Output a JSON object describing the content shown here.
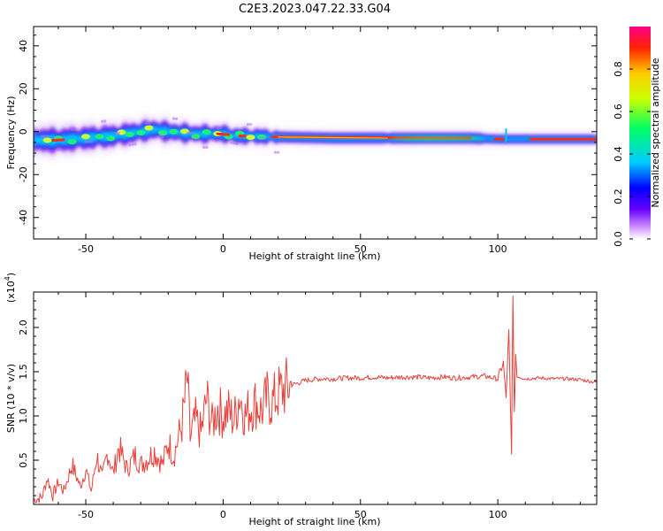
{
  "title": "C2E3.2023.047.22.33.G04",
  "chart_data": [
    {
      "type": "heatmap",
      "title": "C2E3.2023.047.22.33.G04",
      "xlabel": "Height of straight line (km)",
      "ylabel": "Frequency (Hz)",
      "xlim": [
        -69,
        136
      ],
      "ylim": [
        -50,
        49
      ],
      "xticks": [
        -50,
        0,
        50,
        100
      ],
      "xtick_labels": [
        "-50",
        "0",
        "50",
        "100"
      ],
      "yticks": [
        -40,
        -20,
        0,
        20,
        40
      ],
      "ytick_labels": [
        "-40",
        "-20",
        "0",
        "20",
        "40"
      ],
      "grid": false,
      "colorbar": {
        "label": "Normalized spectral amplitude",
        "range": [
          0,
          1
        ],
        "ticks": [
          0.0,
          0.2,
          0.4,
          0.6,
          0.8
        ],
        "tick_labels": [
          "0.0",
          "0.2",
          "0.4",
          "0.6",
          "0.8"
        ],
        "colors": [
          "#ffffff",
          "#cc88ff",
          "#6600ff",
          "#0000ff",
          "#00ccff",
          "#00ff66",
          "#ccff00",
          "#ffcc00",
          "#ff2200",
          "#ff0088"
        ]
      },
      "band": {
        "x": [
          -69,
          -60,
          -50,
          -40,
          -30,
          -25,
          -20,
          -10,
          0,
          5,
          10,
          20,
          40,
          60,
          80,
          90,
          100,
          105,
          110,
          120,
          136
        ],
        "center_freq": [
          -4,
          -4,
          -3,
          -2,
          0,
          1,
          0,
          -1,
          -1,
          -2,
          -2,
          -2.5,
          -3,
          -3,
          -3,
          -3,
          -3.5,
          -3.5,
          -3.5,
          -3.5,
          -3.5
        ]
      }
    },
    {
      "type": "line",
      "title": "",
      "xlabel": "Height of straight line (km)",
      "ylabel": "SNR (10 * v/v)",
      "scale_note": "(x10",
      "scale_exp": "4",
      "xlim": [
        -69,
        136
      ],
      "ylim": [
        0,
        2.4
      ],
      "xticks": [
        -50,
        0,
        50,
        100
      ],
      "xtick_labels": [
        "-50",
        "0",
        "50",
        "100"
      ],
      "yticks": [
        0.5,
        1.0,
        1.5,
        2.0
      ],
      "ytick_labels": [
        "0.5",
        "1.0",
        "1.5",
        "2.0"
      ],
      "grid": false,
      "series": [
        {
          "color": "#e8403a",
          "x": [
            -69,
            -66,
            -64,
            -62,
            -60,
            -58,
            -55,
            -52,
            -50,
            -48,
            -46,
            -44,
            -42,
            -40,
            -38,
            -35,
            -32,
            -30,
            -28,
            -25,
            -22,
            -20,
            -18,
            -15,
            -13,
            -12,
            -10,
            -8,
            -6,
            -4,
            -2,
            0,
            2,
            4,
            6,
            8,
            10,
            12,
            14,
            16,
            18,
            20,
            22,
            25,
            28,
            30,
            35,
            40,
            45,
            50,
            55,
            60,
            65,
            70,
            75,
            80,
            85,
            90,
            95,
            100,
            102,
            103,
            104,
            105,
            105.5,
            106,
            106.5,
            107,
            110,
            115,
            120,
            125,
            130,
            136
          ],
          "y": [
            0.05,
            0.08,
            0.3,
            0.1,
            0.25,
            0.15,
            0.45,
            0.2,
            0.4,
            0.15,
            0.55,
            0.3,
            0.6,
            0.35,
            0.65,
            0.4,
            0.55,
            0.45,
            0.5,
            0.6,
            0.45,
            0.7,
            0.55,
            0.9,
            1.4,
            0.75,
            0.95,
            0.8,
            1.2,
            0.9,
            1.1,
            1.0,
            1.05,
            0.95,
            1.25,
            1.0,
            1.1,
            1.15,
            1.05,
            1.2,
            1.15,
            1.25,
            1.3,
            1.35,
            1.38,
            1.4,
            1.42,
            1.42,
            1.43,
            1.43,
            1.44,
            1.43,
            1.44,
            1.44,
            1.43,
            1.44,
            1.43,
            1.44,
            1.45,
            1.42,
            1.6,
            1.2,
            1.95,
            0.55,
            2.4,
            1.0,
            1.7,
            1.45,
            1.42,
            1.43,
            1.42,
            1.42,
            1.41,
            1.38
          ]
        }
      ]
    }
  ]
}
